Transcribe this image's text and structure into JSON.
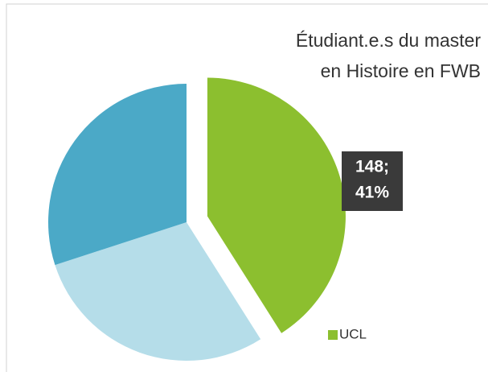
{
  "chart_data": {
    "type": "pie",
    "title": [
      "Étudiant.e.s du master",
      "en Histoire en FWB"
    ],
    "categories": [
      "UCL",
      null,
      null
    ],
    "values": [
      41,
      29,
      30
    ],
    "value_labels": [
      [
        "148;",
        "41%"
      ],
      null,
      null
    ],
    "colors": [
      "#8cbf2f",
      "#b5dde9",
      "#4ba9c7"
    ],
    "exploded": [
      true,
      false,
      false
    ],
    "legend": "bottom-right"
  }
}
